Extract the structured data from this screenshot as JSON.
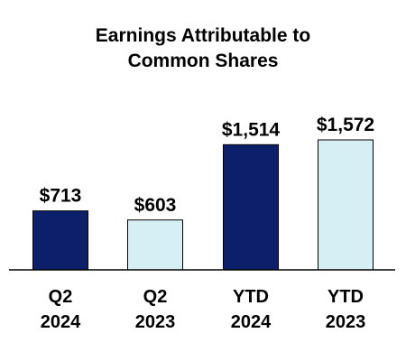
{
  "chart_data": {
    "type": "bar",
    "title_lines": [
      "Earnings Attributable to",
      "Common Shares"
    ],
    "categories": [
      [
        "Q2",
        "2024"
      ],
      [
        "Q2",
        "2023"
      ],
      [
        "YTD",
        "2024"
      ],
      [
        "YTD",
        "2023"
      ]
    ],
    "values": [
      713,
      603,
      1514,
      1572
    ],
    "value_labels": [
      "$713",
      "$603",
      "$1,514",
      "$1,572"
    ],
    "bar_colors": [
      "#0d1f6b",
      "#d6eff4",
      "#0d1f6b",
      "#d6eff4"
    ],
    "bar_stroke": "#000000",
    "ylim": [
      0,
      1572
    ],
    "grid": false,
    "legend": "none"
  }
}
